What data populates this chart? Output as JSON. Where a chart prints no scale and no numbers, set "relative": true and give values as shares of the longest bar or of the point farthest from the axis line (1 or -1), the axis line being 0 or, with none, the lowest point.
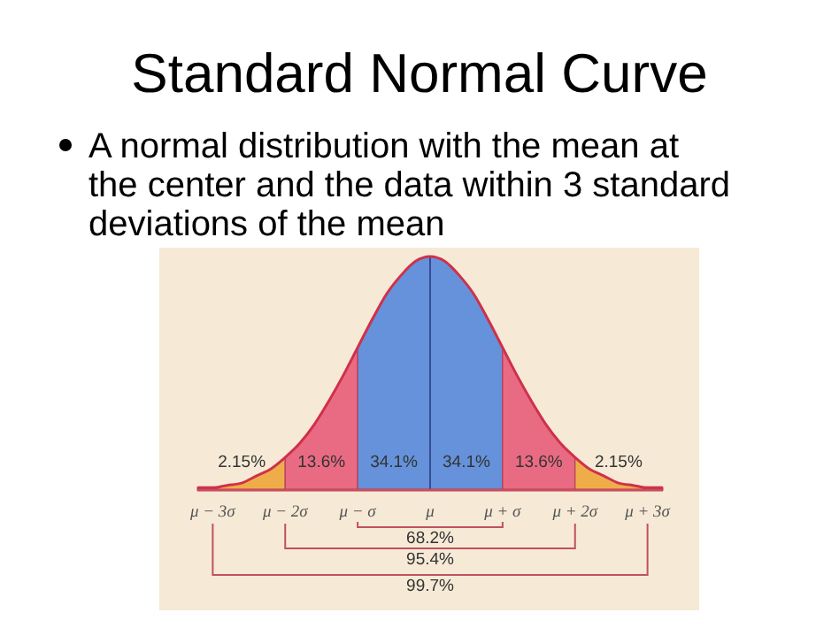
{
  "chart_data": {
    "type": "area",
    "title": "Standard Normal Curve",
    "subtitle": "A normal distribution with the mean at the center and the data within 3 standard deviations of the mean",
    "relative": true,
    "x": [
      -3.2,
      -3,
      -2.8,
      -2.6,
      -2.4,
      -2.2,
      -2,
      -1.8,
      -1.6,
      -1.4,
      -1.2,
      -1,
      -0.8,
      -0.6,
      -0.4,
      -0.2,
      0,
      0.2,
      0.4,
      0.6,
      0.8,
      1,
      1.2,
      1.4,
      1.6,
      1.8,
      2,
      2.2,
      2.4,
      2.6,
      2.8,
      3,
      3.2
    ],
    "xlim": [
      -3.2,
      3.2
    ],
    "xticks": [
      {
        "value": -3,
        "label": "μ − 3σ"
      },
      {
        "value": -2,
        "label": "μ − 2σ"
      },
      {
        "value": -1,
        "label": "μ − σ"
      },
      {
        "value": 0,
        "label": "μ"
      },
      {
        "value": 1,
        "label": "μ + σ"
      },
      {
        "value": 2,
        "label": "μ + 2σ"
      },
      {
        "value": 3,
        "label": "μ + 3σ"
      }
    ],
    "series": [
      {
        "color": "#d0304a",
        "values": [
          0.01,
          0.01,
          0.02,
          0.03,
          0.06,
          0.09,
          0.14,
          0.2,
          0.28,
          0.38,
          0.49,
          0.61,
          0.73,
          0.84,
          0.92,
          0.98,
          1,
          0.98,
          0.92,
          0.84,
          0.73,
          0.61,
          0.49,
          0.38,
          0.28,
          0.2,
          0.14,
          0.09,
          0.06,
          0.03,
          0.02,
          0.01,
          0.01
        ]
      }
    ],
    "bands": [
      {
        "axis": "x",
        "from": -3.2,
        "to": -2,
        "label": "2.15%",
        "color": "#f2b84a"
      },
      {
        "axis": "x",
        "from": -2,
        "to": -1,
        "label": "13.6%",
        "color": "#ec7088"
      },
      {
        "axis": "x",
        "from": -1,
        "to": 0,
        "label": "34.1%",
        "color": "#5d9be6"
      },
      {
        "axis": "x",
        "from": 0,
        "to": 1,
        "label": "34.1%",
        "color": "#5d9be6"
      },
      {
        "axis": "x",
        "from": 1,
        "to": 2,
        "label": "13.6%",
        "color": "#ec7088"
      },
      {
        "axis": "x",
        "from": 2,
        "to": 3.2,
        "label": "2.15%",
        "color": "#f2b84a"
      }
    ],
    "ref_lines": [
      {
        "axis": "x",
        "value": 0,
        "color": "#2a4f9a"
      }
    ],
    "annotations": [
      "68.2%",
      "95.4%",
      "99.7%"
    ]
  }
}
